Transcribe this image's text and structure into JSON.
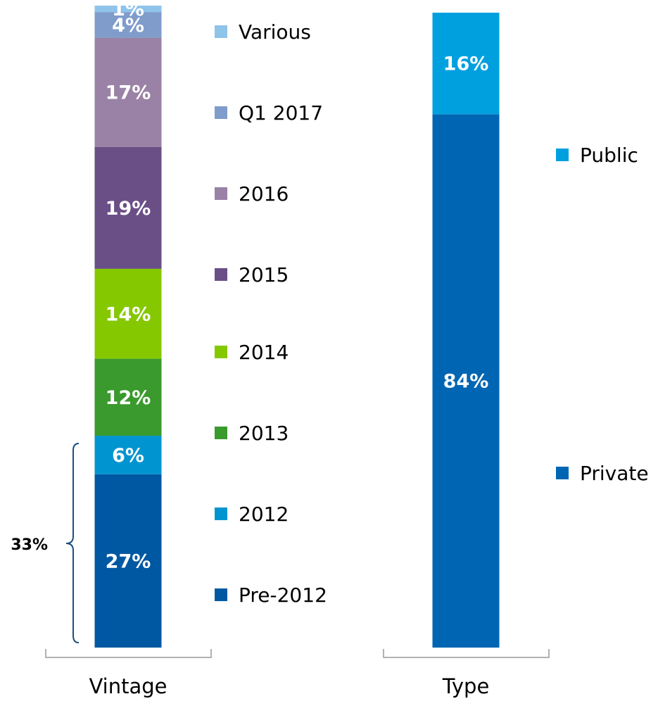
{
  "chart_data": [
    {
      "type": "stacked_bar",
      "categories": [
        "Vintage"
      ],
      "series": [
        {
          "name": "Pre-2012",
          "color": "#0058a3",
          "values": [
            27
          ],
          "value_labels": [
            "27%"
          ]
        },
        {
          "name": "2012",
          "color": "#0095d0",
          "values": [
            6
          ],
          "value_labels": [
            "6%"
          ]
        },
        {
          "name": "2013",
          "color": "#3a9a2d",
          "values": [
            12
          ],
          "value_labels": [
            "12%"
          ]
        },
        {
          "name": "2014",
          "color": "#86c800",
          "values": [
            14
          ],
          "value_labels": [
            "14%"
          ]
        },
        {
          "name": "2015",
          "color": "#6a4f86",
          "values": [
            19
          ],
          "value_labels": [
            "19%"
          ]
        },
        {
          "name": "2016",
          "color": "#9a82a6",
          "values": [
            17
          ],
          "value_labels": [
            "17%"
          ]
        },
        {
          "name": "Q1 2017",
          "color": "#7f9ccb",
          "values": [
            4
          ],
          "value_labels": [
            "4%"
          ]
        },
        {
          "name": "Various",
          "color": "#8ec3ea",
          "values": [
            1
          ],
          "value_labels": [
            "1%"
          ]
        }
      ],
      "annotation": "33%",
      "ylim": [
        0,
        100
      ]
    },
    {
      "type": "stacked_bar",
      "categories": [
        "Type"
      ],
      "series": [
        {
          "name": "Private",
          "color": "#0066b3",
          "values": [
            84
          ],
          "value_labels": [
            "84%"
          ]
        },
        {
          "name": "Public",
          "color": "#00a0df",
          "values": [
            16
          ],
          "value_labels": [
            "16%"
          ]
        }
      ],
      "ylim": [
        0,
        100
      ]
    }
  ]
}
